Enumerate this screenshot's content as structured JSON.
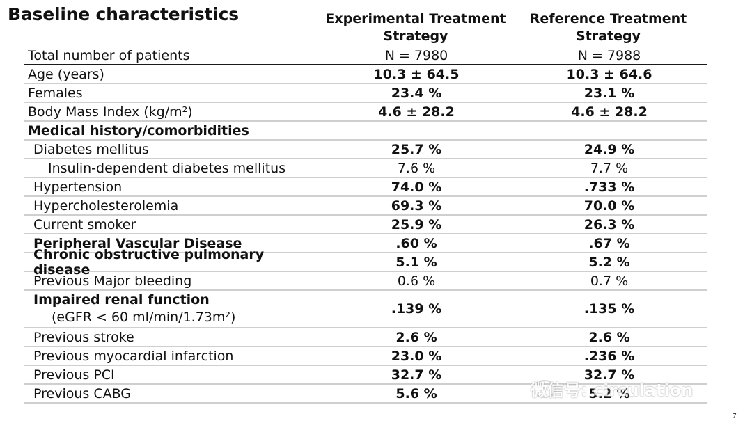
{
  "title": "Baseline characteristics",
  "columns": {
    "experimental": [
      "Experimental Treatment",
      "Strategy"
    ],
    "reference": [
      "Reference Treatment",
      "Strategy"
    ]
  },
  "rows": [
    {
      "label": "Total number of patients",
      "exp": "N = 7980",
      "ref": "N = 7988",
      "indent": 0,
      "bold_label": false,
      "bold_values": false
    },
    {
      "label": "Age (years)",
      "exp": "10.3 ± 64.5",
      "ref": "10.3 ± 64.6",
      "indent": 0,
      "bold_label": false,
      "bold_values": true
    },
    {
      "label": "Females",
      "exp": "23.4 %",
      "ref": "23.1 %",
      "indent": 0,
      "bold_label": false,
      "bold_values": true
    },
    {
      "label": "Body Mass Index (kg/m²)",
      "exp": "4.6  ± 28.2",
      "ref": "4.6  ± 28.2",
      "indent": 0,
      "bold_label": false,
      "bold_values": true
    },
    {
      "label": "Medical history/comorbidities",
      "exp": "",
      "ref": "",
      "indent": 0,
      "bold_label": true,
      "bold_values": false
    },
    {
      "label": "Diabetes mellitus",
      "exp": "25.7 %",
      "ref": "24.9 %",
      "indent": 1,
      "bold_label": false,
      "bold_values": true
    },
    {
      "label": "Insulin-dependent diabetes mellitus",
      "exp": "7.6 %",
      "ref": "7.7 %",
      "indent": 2,
      "bold_label": false,
      "bold_values": false
    },
    {
      "label": "Hypertension",
      "exp": "74.0 %",
      "ref": ".733 %",
      "indent": 1,
      "bold_label": false,
      "bold_values": true
    },
    {
      "label": "Hypercholesterolemia",
      "exp": "69.3 %",
      "ref": "70.0 %",
      "indent": 1,
      "bold_label": false,
      "bold_values": true
    },
    {
      "label": "Current smoker",
      "exp": "25.9 %",
      "ref": "26.3 %",
      "indent": 1,
      "bold_label": false,
      "bold_values": true
    },
    {
      "label": "Peripheral Vascular Disease",
      "exp": ".60 %",
      "ref": ".67 %",
      "indent": 1,
      "bold_label": true,
      "bold_values": true
    },
    {
      "label": "Chronic obstructive pulmonary disease",
      "exp": "5.1 %",
      "ref": "5.2 %",
      "indent": 1,
      "bold_label": true,
      "bold_values": true
    },
    {
      "label": "Previous Major bleeding",
      "exp": "0.6 %",
      "ref": "0.7 %",
      "indent": 1,
      "bold_label": false,
      "bold_values": false
    },
    {
      "label": "Impaired renal function",
      "label2": "(eGFR < 60 ml/min/1.73m²)",
      "exp": ".139 %",
      "ref": ".135 %",
      "indent": 1,
      "bold_label": true,
      "bold_values": true
    },
    {
      "label": "Previous stroke",
      "exp": "2.6 %",
      "ref": "2.6 %",
      "indent": 1,
      "bold_label": false,
      "bold_values": true
    },
    {
      "label": "Previous myocardial infarction",
      "exp": "23.0 %",
      "ref": ".236 %",
      "indent": 1,
      "bold_label": false,
      "bold_values": true
    },
    {
      "label": "Previous PCI",
      "exp": "32.7 %",
      "ref": "32.7 %",
      "indent": 1,
      "bold_label": false,
      "bold_values": true
    },
    {
      "label": "Previous CABG",
      "exp": "5.6 %",
      "ref": "5.2 %",
      "indent": 1,
      "bold_label": false,
      "bold_values": true
    }
  ],
  "watermark": "微信号: circulation",
  "page_number": "7"
}
